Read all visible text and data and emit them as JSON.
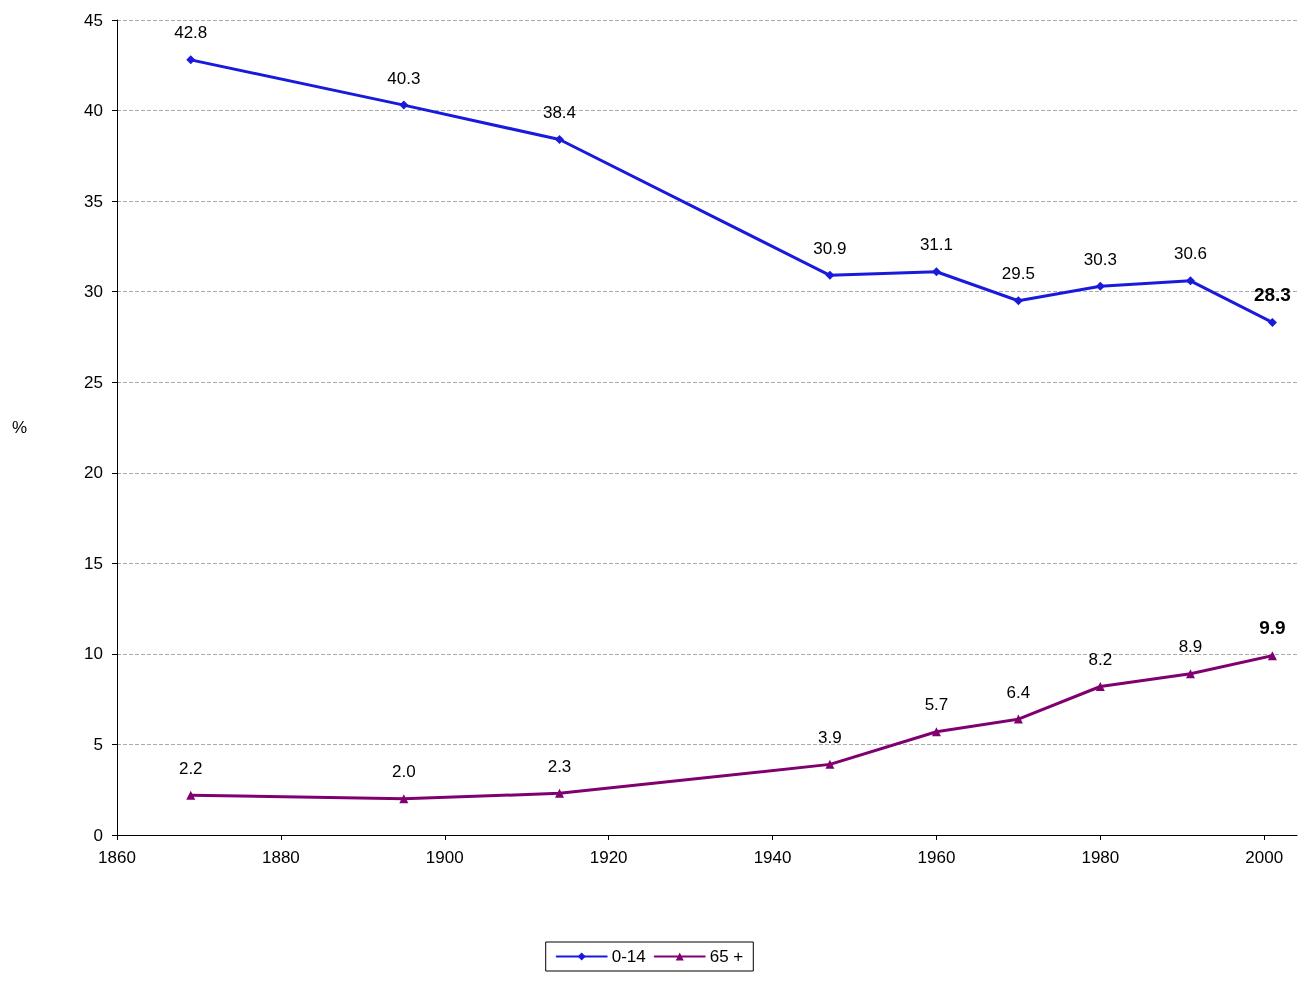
{
  "chart_data": {
    "type": "line",
    "ylabel": "%",
    "x": [
      1869,
      1895,
      1914,
      1947,
      1960,
      1970,
      1980,
      1991,
      2001
    ],
    "series": [
      {
        "name": "0-14",
        "color": "#1a1adc",
        "marker": "diamond",
        "values": [
          42.8,
          40.3,
          38.4,
          30.9,
          31.1,
          29.5,
          30.3,
          30.6,
          28.3
        ],
        "value_labels": [
          "42.8",
          "40.3",
          "38.4",
          "30.9",
          "31.1",
          "29.5",
          "30.3",
          "30.6",
          "28.3"
        ]
      },
      {
        "name": "65 +",
        "color": "#800070",
        "marker": "triangle",
        "values": [
          2.2,
          2.0,
          2.3,
          3.9,
          5.7,
          6.4,
          8.2,
          8.9,
          9.9
        ],
        "value_labels": [
          "2.2",
          "2.0",
          "2.3",
          "3.9",
          "5.7",
          "6.4",
          "8.2",
          "8.9",
          "9.9"
        ]
      }
    ],
    "xlim": [
      1860,
      2004
    ],
    "xticks": [
      1860,
      1880,
      1900,
      1920,
      1940,
      1960,
      1980,
      2000
    ],
    "ylim": [
      0,
      45
    ],
    "yticks": [
      0,
      5,
      10,
      15,
      20,
      25,
      30,
      35,
      40,
      45
    ],
    "grid": "y",
    "legend": "bottom",
    "line_style": "solid"
  }
}
